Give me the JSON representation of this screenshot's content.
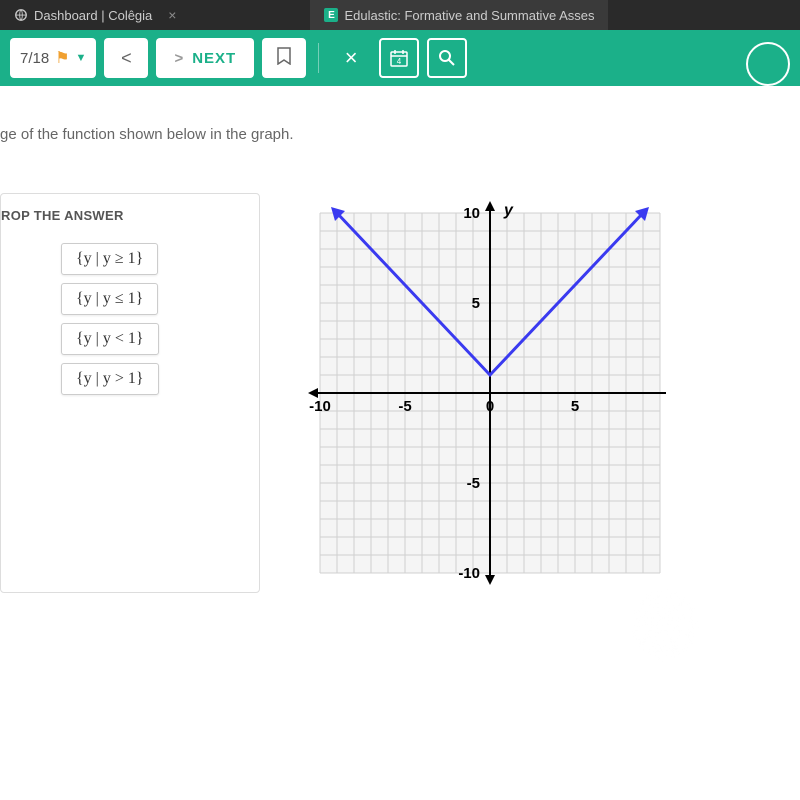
{
  "tabs": {
    "dashboard": {
      "label": "Dashboard | Colêgia"
    },
    "edulastic": {
      "label": "Edulastic: Formative and Summative Asses"
    }
  },
  "toolbar": {
    "progress": "7/18",
    "prev": "<",
    "next_arrow": ">",
    "next_label": "NEXT"
  },
  "question": {
    "text": "ge of the function shown below in the graph."
  },
  "panel": {
    "title": "ROP THE ANSWER",
    "answers": [
      "{y | y ≥ 1}",
      "{y | y ≤ 1}",
      "{y | y < 1}",
      "{y | y > 1}"
    ]
  },
  "graph": {
    "type": "absolute-value",
    "xlim": [
      -10,
      10
    ],
    "ylim": [
      -10,
      10
    ],
    "xtick_step": 5,
    "ytick_step": 5,
    "xticks": [
      "-10",
      "-5",
      "0",
      "5"
    ],
    "yticks": [
      "10",
      "5",
      "-5",
      "-10"
    ],
    "y_label": "y",
    "vertex": [
      0,
      1
    ],
    "slope": 1,
    "line_color": "#3a3af0",
    "line_width": 3,
    "grid_color": "#d0d0d0",
    "axis_color": "#000000",
    "background_color": "#f5f5f5",
    "arrow_color": "#3a3af0",
    "points": [
      {
        "x": -9,
        "y": 10
      },
      {
        "x": 0,
        "y": 1
      },
      {
        "x": 9,
        "y": 10
      }
    ]
  },
  "colors": {
    "toolbar_bg": "#1bb089",
    "flag": "#f0a030"
  }
}
